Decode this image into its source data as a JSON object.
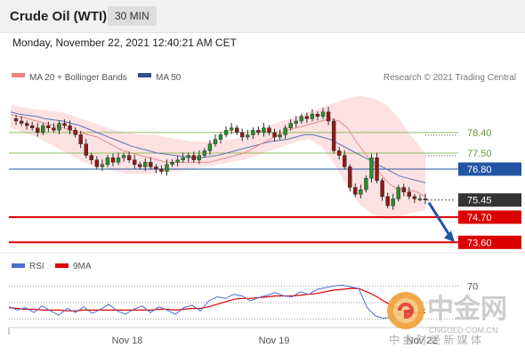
{
  "header": {
    "title": "Crude Oil (WTI)",
    "timeframe": "30 MIN",
    "datetime": "Monday, November 22, 2021 12:40:21 AM CET"
  },
  "legend": {
    "items": [
      {
        "label": "MA 20 + Bollinger Bands",
        "color": "#f08080"
      },
      {
        "label": "MA 50",
        "color": "#2f4f8f"
      }
    ],
    "source": "Research © 2021 Trading Central"
  },
  "chart_data": [
    {
      "type": "candlestick",
      "xlabels": [
        "Nov 18",
        "Nov 19",
        "Nov 22"
      ],
      "ylim": [
        73.3,
        80.3
      ],
      "levels": [
        {
          "value": 78.4,
          "label": "78.40",
          "kind": "resistance",
          "color": "#8fbf5f"
        },
        {
          "value": 77.5,
          "label": "77.50",
          "kind": "resistance",
          "color": "#8fbf5f"
        },
        {
          "value": 76.8,
          "label": "76.80",
          "kind": "pivot",
          "color": "#2455a5"
        },
        {
          "value": 75.45,
          "label": "75.45",
          "kind": "last-price",
          "color": "#333333"
        },
        {
          "value": 74.7,
          "label": "74.70",
          "kind": "support",
          "color": "#dd0000"
        },
        {
          "value": 73.6,
          "label": "73.60",
          "kind": "support",
          "color": "#dd0000"
        }
      ],
      "forecast": {
        "from": 75.45,
        "to": 73.6,
        "direction": "down",
        "color": "#2455a5"
      },
      "price_series": [
        79.0,
        78.9,
        78.8,
        78.7,
        78.6,
        78.4,
        78.7,
        78.6,
        78.5,
        78.8,
        78.7,
        78.5,
        78.3,
        77.9,
        77.4,
        77.2,
        76.9,
        77.0,
        77.3,
        77.1,
        77.3,
        77.4,
        77.2,
        77.0,
        76.9,
        77.1,
        76.9,
        76.8,
        76.7,
        77.0,
        77.1,
        77.2,
        77.3,
        77.4,
        77.2,
        77.4,
        77.6,
        77.9,
        78.1,
        78.3,
        78.5,
        78.6,
        78.4,
        78.2,
        78.3,
        78.5,
        78.4,
        78.6,
        78.4,
        78.2,
        78.3,
        78.6,
        78.8,
        78.9,
        79.1,
        79.0,
        79.2,
        79.1,
        79.3,
        78.9,
        77.6,
        77.4,
        76.9,
        76.0,
        75.7,
        75.9,
        76.4,
        77.3,
        76.3,
        75.6,
        75.2,
        75.5,
        76.0,
        75.8,
        75.6,
        75.5,
        75.5,
        75.45
      ],
      "ma20_series": [
        79.2,
        79.1,
        79.0,
        78.9,
        78.8,
        78.7,
        78.6,
        78.5,
        78.4,
        78.3,
        78.2,
        78.0,
        77.8,
        77.6,
        77.5,
        77.4,
        77.3,
        77.2,
        77.1,
        77.1,
        77.1,
        77.1,
        77.1,
        77.1,
        77.2,
        77.3,
        77.4,
        77.5,
        77.7,
        77.9,
        78.1,
        78.3,
        78.5,
        78.6,
        78.7,
        78.8,
        78.9,
        79.0,
        78.9,
        78.6,
        78.0,
        77.5,
        77.0,
        76.5,
        76.1,
        75.9,
        75.9,
        75.8,
        75.6
      ],
      "ma50_series": [
        79.3,
        79.2,
        79.15,
        79.1,
        79.0,
        78.95,
        78.9,
        78.8,
        78.7,
        78.55,
        78.4,
        78.25,
        78.1,
        77.95,
        77.8,
        77.7,
        77.6,
        77.5,
        77.45,
        77.4,
        77.35,
        77.3,
        77.3,
        77.35,
        77.4,
        77.5,
        77.6,
        77.7,
        77.8,
        77.9,
        78.0,
        78.05,
        78.1,
        78.2,
        78.3,
        78.3,
        78.2,
        78.1,
        77.9,
        77.7,
        77.5,
        77.3,
        77.1,
        76.9,
        76.7,
        76.5,
        76.4,
        76.3,
        76.2
      ],
      "bollinger_upper": [
        79.6,
        79.5,
        79.4,
        79.35,
        79.3,
        79.1,
        78.9,
        78.7,
        78.5,
        78.4,
        78.3,
        78.3,
        78.2,
        78.1,
        78.0,
        78.0,
        78.05,
        78.1,
        78.2,
        78.4,
        78.7,
        78.9,
        79.1,
        79.3,
        79.5,
        79.7,
        79.9,
        80.0,
        79.9,
        79.6,
        79.0,
        78.2,
        77.5
      ],
      "bollinger_lower": [
        78.6,
        78.4,
        78.2,
        77.9,
        77.6,
        77.3,
        77.0,
        76.9,
        76.7,
        76.6,
        76.6,
        76.6,
        76.7,
        76.7,
        76.8,
        76.9,
        77.0,
        77.1,
        77.2,
        77.4,
        77.6,
        77.8,
        78.0,
        78.1,
        77.8,
        77.0,
        76.0,
        75.2,
        74.8,
        74.6,
        74.7,
        74.9,
        75.0
      ]
    },
    {
      "type": "line",
      "title": "RSI",
      "legend": [
        {
          "label": "RSI",
          "color": "#4b6fd0"
        },
        {
          "label": "9MA",
          "color": "#dd0000"
        }
      ],
      "ylim": [
        20,
        80
      ],
      "levels": [
        {
          "value": 70,
          "label": "70"
        }
      ],
      "rsi_series": [
        45,
        41,
        44,
        38,
        46,
        40,
        35,
        43,
        38,
        45,
        37,
        42,
        48,
        40,
        36,
        42,
        46,
        38,
        45,
        41,
        36,
        44,
        47,
        40,
        52,
        57,
        55,
        60,
        58,
        52,
        56,
        59,
        62,
        58,
        57,
        63,
        60,
        66,
        68,
        70,
        71,
        69,
        67,
        44,
        34,
        31,
        33,
        36,
        41,
        38,
        42
      ],
      "ma9_series": [
        44,
        43,
        42,
        42,
        41,
        41,
        41,
        40,
        40,
        41,
        41,
        41,
        41,
        41,
        41,
        41,
        41,
        41,
        42,
        42,
        41,
        42,
        43,
        43,
        45,
        48,
        51,
        54,
        55,
        55,
        56,
        57,
        58,
        58,
        58,
        59,
        60,
        61,
        63,
        65,
        66,
        67,
        67,
        63,
        58,
        52,
        46,
        41,
        38,
        37,
        38
      ]
    }
  ],
  "watermark": {
    "brand": "中金网",
    "site": "CNGOLD.COM.CN",
    "tagline": "中 金 财 经 新 媒 体"
  }
}
